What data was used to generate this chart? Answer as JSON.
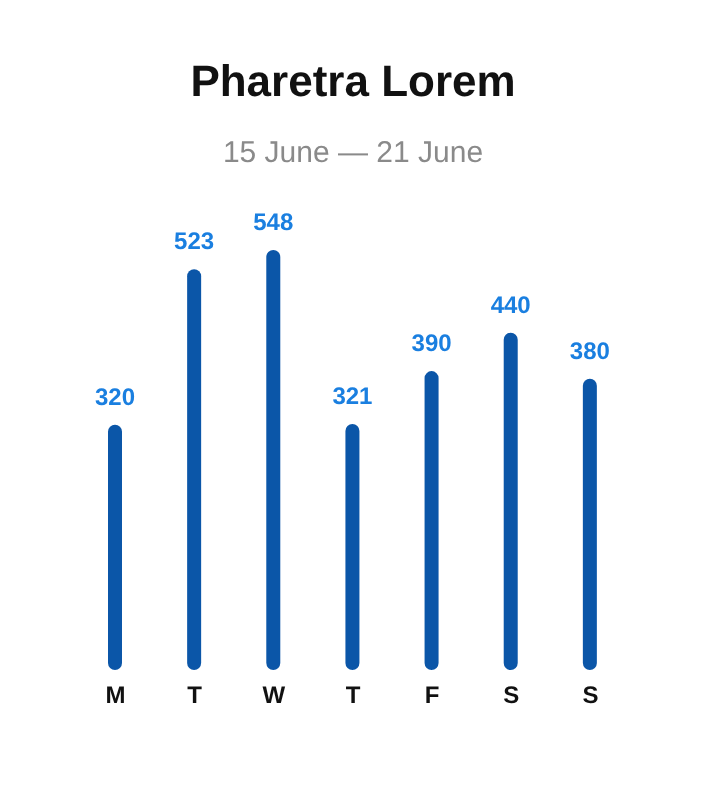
{
  "chart_data": {
    "type": "bar",
    "title": "Pharetra Lorem",
    "subtitle": "15 June — 21 June",
    "categories": [
      "M",
      "T",
      "W",
      "T",
      "F",
      "S",
      "S"
    ],
    "values": [
      320,
      523,
      548,
      321,
      390,
      440,
      380
    ],
    "color": "#0b56a8",
    "data_labels": true,
    "grid": false,
    "legend": false
  }
}
